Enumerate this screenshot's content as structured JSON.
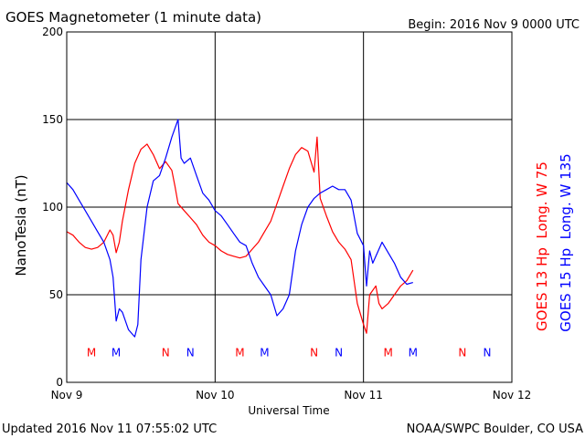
{
  "header": {
    "title": "GOES Magnetometer (1 minute data)",
    "begin": "Begin:  2016 Nov 9 0000 UTC"
  },
  "footer": {
    "updated": "Updated 2016 Nov 11 07:55:02 UTC",
    "credit": "NOAA/SWPC Boulder, CO USA"
  },
  "colors": {
    "goes13": "#ff0000",
    "goes15": "#0000ff",
    "grid": "#000000"
  },
  "chart_data": {
    "type": "line",
    "title": "GOES Magnetometer (1 minute data)",
    "xlabel": "Universal Time",
    "ylabel": "NanoTesla (nT)",
    "x_units": "hours since 2016 Nov 9 0000 UTC",
    "xlim": [
      0,
      72
    ],
    "ylim": [
      0,
      200
    ],
    "x_ticks": [
      {
        "x": 0,
        "label": "Nov 9"
      },
      {
        "x": 24,
        "label": "Nov 10"
      },
      {
        "x": 48,
        "label": "Nov 11"
      },
      {
        "x": 72,
        "label": "Nov 12"
      }
    ],
    "y_ticks": [
      0,
      50,
      100,
      150,
      200
    ],
    "grid": true,
    "series": [
      {
        "name": "GOES 13 Hp  Long. W 75",
        "color": "#ff0000",
        "points": [
          [
            0,
            86
          ],
          [
            1,
            84
          ],
          [
            2,
            80
          ],
          [
            3,
            77
          ],
          [
            4,
            76
          ],
          [
            5,
            77
          ],
          [
            6,
            80
          ],
          [
            7,
            87
          ],
          [
            7.5,
            84
          ],
          [
            8,
            74
          ],
          [
            8.5,
            80
          ],
          [
            9,
            92
          ],
          [
            10,
            110
          ],
          [
            11,
            125
          ],
          [
            12,
            133
          ],
          [
            13,
            136
          ],
          [
            14,
            130
          ],
          [
            15,
            122
          ],
          [
            16,
            126
          ],
          [
            17,
            121
          ],
          [
            17.5,
            112
          ],
          [
            18,
            102
          ],
          [
            19,
            98
          ],
          [
            20,
            94
          ],
          [
            21,
            90
          ],
          [
            22,
            84
          ],
          [
            23,
            80
          ],
          [
            24,
            78
          ],
          [
            25,
            75
          ],
          [
            26,
            73
          ],
          [
            27,
            72
          ],
          [
            28,
            71
          ],
          [
            29,
            72
          ],
          [
            30,
            76
          ],
          [
            31,
            80
          ],
          [
            32,
            86
          ],
          [
            33,
            92
          ],
          [
            34,
            102
          ],
          [
            35,
            112
          ],
          [
            36,
            122
          ],
          [
            37,
            130
          ],
          [
            38,
            134
          ],
          [
            39,
            132
          ],
          [
            40,
            120
          ],
          [
            40.5,
            140
          ],
          [
            41,
            105
          ],
          [
            42,
            95
          ],
          [
            43,
            86
          ],
          [
            44,
            80
          ],
          [
            45,
            76
          ],
          [
            46,
            70
          ],
          [
            47,
            45
          ],
          [
            48,
            33
          ],
          [
            48.5,
            28
          ],
          [
            49,
            50
          ],
          [
            50,
            55
          ],
          [
            50.5,
            45
          ],
          [
            51,
            42
          ],
          [
            52,
            45
          ],
          [
            53,
            50
          ],
          [
            54,
            55
          ],
          [
            55,
            58
          ],
          [
            56,
            64
          ]
        ]
      },
      {
        "name": "GOES 15 Hp  Long. W 135",
        "color": "#0000ff",
        "points": [
          [
            0,
            114
          ],
          [
            1,
            110
          ],
          [
            2,
            104
          ],
          [
            3,
            98
          ],
          [
            4,
            92
          ],
          [
            5,
            86
          ],
          [
            6,
            80
          ],
          [
            7,
            70
          ],
          [
            7.5,
            60
          ],
          [
            8,
            35
          ],
          [
            8.5,
            42
          ],
          [
            9,
            40
          ],
          [
            10,
            30
          ],
          [
            11,
            26
          ],
          [
            11.5,
            33
          ],
          [
            12,
            70
          ],
          [
            13,
            100
          ],
          [
            14,
            115
          ],
          [
            15,
            118
          ],
          [
            16,
            128
          ],
          [
            17,
            140
          ],
          [
            18,
            150
          ],
          [
            18.5,
            128
          ],
          [
            19,
            125
          ],
          [
            20,
            128
          ],
          [
            21,
            118
          ],
          [
            22,
            108
          ],
          [
            23,
            104
          ],
          [
            24,
            98
          ],
          [
            25,
            95
          ],
          [
            26,
            90
          ],
          [
            27,
            85
          ],
          [
            28,
            80
          ],
          [
            29,
            78
          ],
          [
            30,
            68
          ],
          [
            31,
            60
          ],
          [
            32,
            55
          ],
          [
            33,
            50
          ],
          [
            34,
            38
          ],
          [
            35,
            42
          ],
          [
            36,
            50
          ],
          [
            37,
            75
          ],
          [
            38,
            90
          ],
          [
            39,
            100
          ],
          [
            40,
            105
          ],
          [
            41,
            108
          ],
          [
            42,
            110
          ],
          [
            43,
            112
          ],
          [
            44,
            110
          ],
          [
            45,
            110
          ],
          [
            46,
            104
          ],
          [
            47,
            85
          ],
          [
            48,
            78
          ],
          [
            48.5,
            55
          ],
          [
            49,
            75
          ],
          [
            49.5,
            68
          ],
          [
            50,
            72
          ],
          [
            51,
            80
          ],
          [
            52,
            74
          ],
          [
            53,
            68
          ],
          [
            54,
            60
          ],
          [
            55,
            56
          ],
          [
            56,
            57
          ]
        ]
      }
    ],
    "annotations": [
      {
        "x": 4,
        "label": "M",
        "color": "#ff0000"
      },
      {
        "x": 8,
        "label": "M",
        "color": "#0000ff"
      },
      {
        "x": 16,
        "label": "N",
        "color": "#ff0000"
      },
      {
        "x": 20,
        "label": "N",
        "color": "#0000ff"
      },
      {
        "x": 28,
        "label": "M",
        "color": "#ff0000"
      },
      {
        "x": 32,
        "label": "M",
        "color": "#0000ff"
      },
      {
        "x": 40,
        "label": "N",
        "color": "#ff0000"
      },
      {
        "x": 44,
        "label": "N",
        "color": "#0000ff"
      },
      {
        "x": 52,
        "label": "M",
        "color": "#ff0000"
      },
      {
        "x": 56,
        "label": "M",
        "color": "#0000ff"
      },
      {
        "x": 64,
        "label": "N",
        "color": "#ff0000"
      },
      {
        "x": 68,
        "label": "N",
        "color": "#0000ff"
      }
    ],
    "annotation_y": 17
  }
}
